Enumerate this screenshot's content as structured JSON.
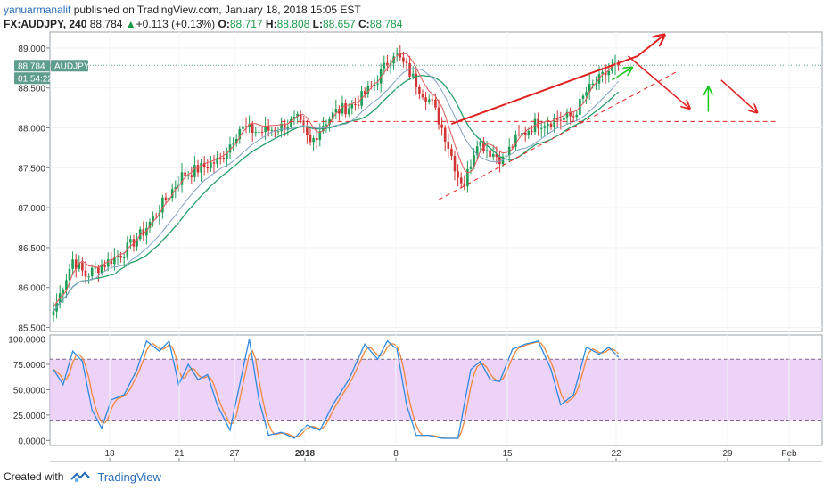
{
  "header": {
    "author": "yanuarmanalif",
    "published": "published on TradingView.com, January 18, 2018 15:05 EST"
  },
  "ohlc": {
    "symbol": "FX:AUDJPY",
    "interval": "240",
    "last": "88.784",
    "change": "+0.113 (+0.13%)",
    "change_arrow": "▲",
    "open_label": "O:",
    "open": "88.717",
    "high_label": "H:",
    "high": "88.808",
    "low_label": "L:",
    "low": "88.657",
    "close_label": "C:",
    "close": "88.784"
  },
  "badges": {
    "price": "88.784",
    "symbol": "AUDJPY",
    "countdown": "01:54:22"
  },
  "footer": {
    "created_with": "Created with",
    "brand": "TradingView"
  },
  "colors": {
    "up": "#1f9d55",
    "down": "#d03434",
    "sma_fast": "#e15759",
    "sma_slow": "#24a06b",
    "sma_mid": "#7fa0c8",
    "drawing": "#e0201f",
    "arrow_up": "#19c619",
    "stoch_k": "#2f8ae0",
    "stoch_d": "#f0883e",
    "band": "#e9c8f6",
    "badge": "#5f9e8f"
  },
  "chart_data": [
    {
      "type": "candlestick",
      "title": "FX:AUDJPY, 240",
      "y_ticks": [
        "85.500",
        "86.000",
        "86.500",
        "87.000",
        "87.500",
        "88.000",
        "88.500",
        "89.000"
      ],
      "ylim": [
        85.45,
        89.2
      ],
      "x_ticks": [
        "18",
        "21",
        "27",
        "2018",
        "8",
        "15",
        "22",
        "29",
        "Feb"
      ],
      "anchors": [
        {
          "bar": 0,
          "close": 85.7
        },
        {
          "bar": 6,
          "close": 86.35
        },
        {
          "bar": 10,
          "close": 86.15
        },
        {
          "bar": 16,
          "close": 86.3
        },
        {
          "bar": 22,
          "close": 86.45
        },
        {
          "bar": 28,
          "close": 86.7
        },
        {
          "bar": 34,
          "close": 87.05
        },
        {
          "bar": 40,
          "close": 87.4
        },
        {
          "bar": 46,
          "close": 87.5
        },
        {
          "bar": 52,
          "close": 87.6
        },
        {
          "bar": 58,
          "close": 88.0
        },
        {
          "bar": 64,
          "close": 87.95
        },
        {
          "bar": 70,
          "close": 88.0
        },
        {
          "bar": 76,
          "close": 88.1
        },
        {
          "bar": 80,
          "close": 87.8
        },
        {
          "bar": 84,
          "close": 88.05
        },
        {
          "bar": 88,
          "close": 88.2
        },
        {
          "bar": 94,
          "close": 88.3
        },
        {
          "bar": 100,
          "close": 88.55
        },
        {
          "bar": 106,
          "close": 88.95
        },
        {
          "bar": 110,
          "close": 88.75
        },
        {
          "bar": 114,
          "close": 88.5
        },
        {
          "bar": 118,
          "close": 88.3
        },
        {
          "bar": 122,
          "close": 87.9
        },
        {
          "bar": 126,
          "close": 87.4
        },
        {
          "bar": 128,
          "close": 87.3
        },
        {
          "bar": 132,
          "close": 87.85
        },
        {
          "bar": 136,
          "close": 87.7
        },
        {
          "bar": 140,
          "close": 87.6
        },
        {
          "bar": 144,
          "close": 87.85
        },
        {
          "bar": 150,
          "close": 88.05
        },
        {
          "bar": 156,
          "close": 88.1
        },
        {
          "bar": 162,
          "close": 88.15
        },
        {
          "bar": 166,
          "close": 88.45
        },
        {
          "bar": 170,
          "close": 88.6
        },
        {
          "bar": 174,
          "close": 88.75
        },
        {
          "bar": 176,
          "close": 88.784
        }
      ],
      "total_bars": 177
    },
    {
      "type": "line",
      "title": "Stochastic",
      "y_ticks": [
        "0.0000",
        "25.0000",
        "50.0000",
        "75.0000",
        "100.0000"
      ],
      "ylim": [
        -5,
        104
      ],
      "band": [
        20,
        80
      ],
      "k_anchors": [
        {
          "bar": 0,
          "v": 70
        },
        {
          "bar": 3,
          "v": 55
        },
        {
          "bar": 6,
          "v": 88
        },
        {
          "bar": 9,
          "v": 78
        },
        {
          "bar": 12,
          "v": 30
        },
        {
          "bar": 15,
          "v": 12
        },
        {
          "bar": 18,
          "v": 40
        },
        {
          "bar": 22,
          "v": 45
        },
        {
          "bar": 26,
          "v": 70
        },
        {
          "bar": 29,
          "v": 98
        },
        {
          "bar": 33,
          "v": 88
        },
        {
          "bar": 36,
          "v": 98
        },
        {
          "bar": 39,
          "v": 55
        },
        {
          "bar": 42,
          "v": 75
        },
        {
          "bar": 45,
          "v": 60
        },
        {
          "bar": 48,
          "v": 65
        },
        {
          "bar": 51,
          "v": 35
        },
        {
          "bar": 55,
          "v": 10
        },
        {
          "bar": 59,
          "v": 70
        },
        {
          "bar": 61,
          "v": 100
        },
        {
          "bar": 64,
          "v": 40
        },
        {
          "bar": 67,
          "v": 5
        },
        {
          "bar": 71,
          "v": 8
        },
        {
          "bar": 75,
          "v": 2
        },
        {
          "bar": 79,
          "v": 15
        },
        {
          "bar": 83,
          "v": 10
        },
        {
          "bar": 87,
          "v": 35
        },
        {
          "bar": 92,
          "v": 60
        },
        {
          "bar": 97,
          "v": 95
        },
        {
          "bar": 101,
          "v": 80
        },
        {
          "bar": 104,
          "v": 98
        },
        {
          "bar": 107,
          "v": 90
        },
        {
          "bar": 110,
          "v": 35
        },
        {
          "bar": 113,
          "v": 5
        },
        {
          "bar": 117,
          "v": 5
        },
        {
          "bar": 121,
          "v": 2
        },
        {
          "bar": 126,
          "v": 2
        },
        {
          "bar": 130,
          "v": 70
        },
        {
          "bar": 133,
          "v": 78
        },
        {
          "bar": 136,
          "v": 60
        },
        {
          "bar": 139,
          "v": 58
        },
        {
          "bar": 143,
          "v": 90
        },
        {
          "bar": 147,
          "v": 95
        },
        {
          "bar": 151,
          "v": 98
        },
        {
          "bar": 155,
          "v": 70
        },
        {
          "bar": 158,
          "v": 35
        },
        {
          "bar": 162,
          "v": 45
        },
        {
          "bar": 166,
          "v": 92
        },
        {
          "bar": 170,
          "v": 85
        },
        {
          "bar": 173,
          "v": 92
        },
        {
          "bar": 176,
          "v": 82
        }
      ]
    }
  ],
  "drawings": {
    "support_line": {
      "from": {
        "bar": 120,
        "price": 87.1
      },
      "to": {
        "bar": 194,
        "price": 88.7
      }
    },
    "resistance_line": {
      "from": {
        "bar": 124,
        "price": 88.05
      },
      "to": {
        "bar": 182,
        "price": 88.9
      }
    },
    "horizontal_level": {
      "from": {
        "bar": 71,
        "price": 88.08
      },
      "to": {
        "bar": 225,
        "price": 88.08
      }
    }
  }
}
